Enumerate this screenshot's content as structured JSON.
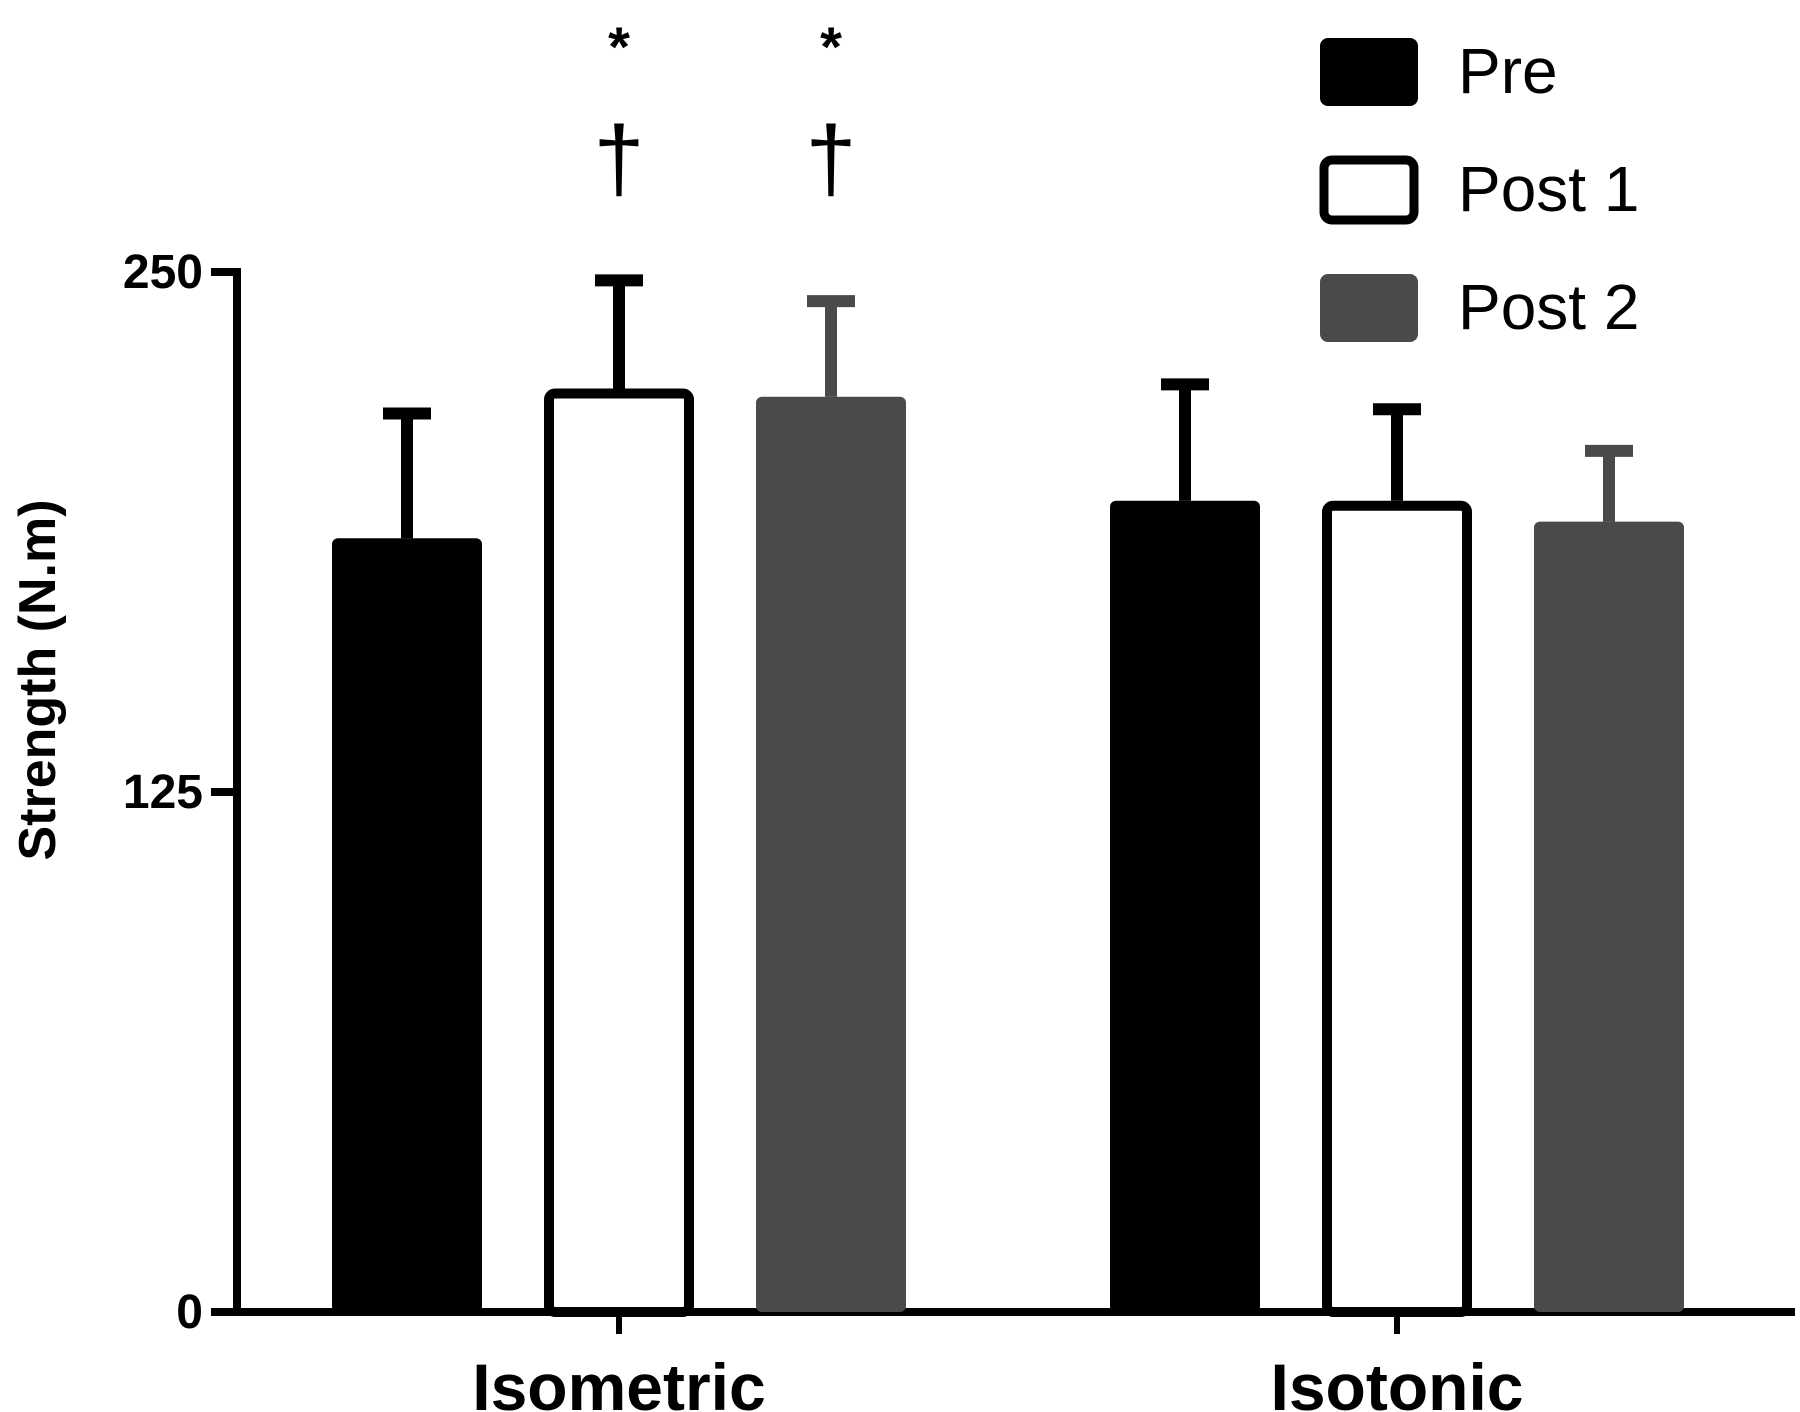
{
  "chart_data": {
    "type": "bar",
    "categories": [
      "Isometric",
      "Isotonic"
    ],
    "series": [
      {
        "name": "Pre",
        "values": [
          186,
          195
        ],
        "errors": [
          30,
          28
        ],
        "color": "#000000",
        "style": "filled"
      },
      {
        "name": "Post 1",
        "values": [
          222,
          195
        ],
        "errors": [
          26,
          22
        ],
        "color": "#000000",
        "style": "outline"
      },
      {
        "name": "Post 2",
        "values": [
          220,
          190
        ],
        "errors": [
          23,
          17
        ],
        "color": "#4a4a4a",
        "style": "filled"
      }
    ],
    "annotations": [
      {
        "category": "Isometric",
        "series": "Post 1",
        "symbols": [
          "*",
          "†"
        ]
      },
      {
        "category": "Isometric",
        "series": "Post 2",
        "symbols": [
          "*",
          "†"
        ]
      }
    ],
    "ylabel": "Strength (N.m)",
    "xlabel": "",
    "title": "",
    "ylim": [
      0,
      250
    ],
    "yticks": [
      "0",
      "125",
      "250"
    ],
    "grid": false,
    "legend_position": "top-right"
  }
}
